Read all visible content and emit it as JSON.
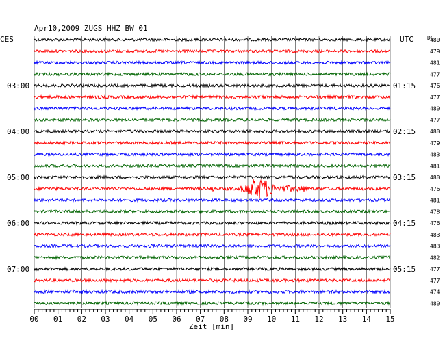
{
  "header": {
    "title": "Apr10,2009   ZUGS HHZ BW 01"
  },
  "left_label": "CES",
  "right_label": "UTC",
  "dc_label": "DC",
  "colors": {
    "black": "#000000",
    "red": "#ff0000",
    "blue": "#0000ff",
    "green": "#006400",
    "grid": "#000000"
  },
  "chart_data": {
    "type": "line",
    "title": "Apr10,2009   ZUGS HHZ BW 01",
    "xlabel": "Zeit [min]",
    "xlim": [
      0,
      15
    ],
    "x_ticks": [
      "00",
      "01",
      "02",
      "03",
      "04",
      "05",
      "06",
      "07",
      "08",
      "09",
      "10",
      "11",
      "12",
      "13",
      "14",
      "15"
    ],
    "left_time_labels": [
      {
        "trace": 4,
        "label": "03:00"
      },
      {
        "trace": 8,
        "label": "04:00"
      },
      {
        "trace": 12,
        "label": "05:00"
      },
      {
        "trace": 16,
        "label": "06:00"
      },
      {
        "trace": 20,
        "label": "07:00"
      }
    ],
    "right_time_labels": [
      {
        "trace": 4,
        "label": "01:15"
      },
      {
        "trace": 8,
        "label": "02:15"
      },
      {
        "trace": 12,
        "label": "03:15"
      },
      {
        "trace": 16,
        "label": "04:15"
      },
      {
        "trace": 20,
        "label": "05:15"
      }
    ],
    "dc_values": [
      "480",
      "479",
      "481",
      "477",
      "476",
      "477",
      "480",
      "477",
      "480",
      "479",
      "483",
      "481",
      "480",
      "476",
      "481",
      "478",
      "476",
      "483",
      "483",
      "482",
      "477",
      "477",
      "474",
      "480"
    ],
    "trace_colors": [
      "black",
      "red",
      "blue",
      "green"
    ],
    "events": [
      {
        "trace": 13,
        "start_min": 7.4,
        "end_min": 7.7,
        "amplitude": 9
      },
      {
        "trace": 13,
        "start_min": 8.7,
        "end_min": 11.5,
        "amplitude": 22
      },
      {
        "trace": 18,
        "start_min": 4.5,
        "end_min": 6.5,
        "amplitude": 4
      }
    ]
  }
}
